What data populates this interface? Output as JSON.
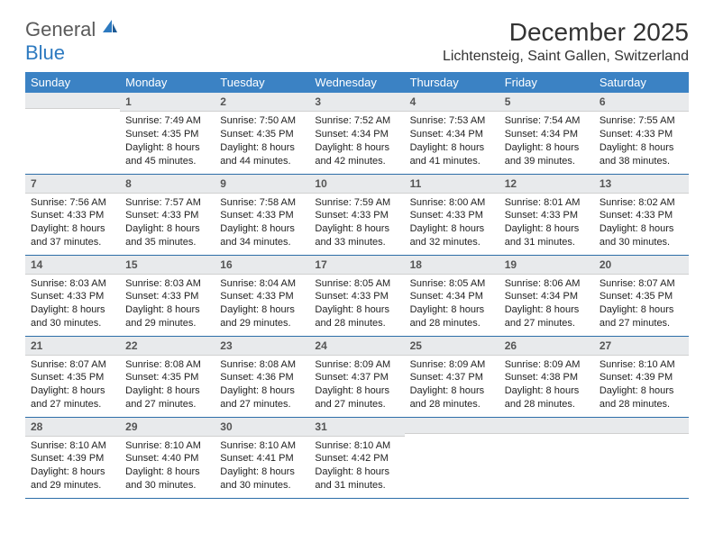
{
  "logo": {
    "general": "General",
    "blue": "Blue"
  },
  "title": "December 2025",
  "location": "Lichtensteig, Saint Gallen, Switzerland",
  "colors": {
    "header_bg": "#3b82c4",
    "header_text": "#ffffff",
    "daynum_bg": "#e8eaec",
    "row_border": "#2d6ea8",
    "text": "#222222"
  },
  "daynames": [
    "Sunday",
    "Monday",
    "Tuesday",
    "Wednesday",
    "Thursday",
    "Friday",
    "Saturday"
  ],
  "weeks": [
    [
      {
        "n": "",
        "sr": "",
        "ss": "",
        "dl": ""
      },
      {
        "n": "1",
        "sr": "7:49 AM",
        "ss": "4:35 PM",
        "dl": "8 hours and 45 minutes."
      },
      {
        "n": "2",
        "sr": "7:50 AM",
        "ss": "4:35 PM",
        "dl": "8 hours and 44 minutes."
      },
      {
        "n": "3",
        "sr": "7:52 AM",
        "ss": "4:34 PM",
        "dl": "8 hours and 42 minutes."
      },
      {
        "n": "4",
        "sr": "7:53 AM",
        "ss": "4:34 PM",
        "dl": "8 hours and 41 minutes."
      },
      {
        "n": "5",
        "sr": "7:54 AM",
        "ss": "4:34 PM",
        "dl": "8 hours and 39 minutes."
      },
      {
        "n": "6",
        "sr": "7:55 AM",
        "ss": "4:33 PM",
        "dl": "8 hours and 38 minutes."
      }
    ],
    [
      {
        "n": "7",
        "sr": "7:56 AM",
        "ss": "4:33 PM",
        "dl": "8 hours and 37 minutes."
      },
      {
        "n": "8",
        "sr": "7:57 AM",
        "ss": "4:33 PM",
        "dl": "8 hours and 35 minutes."
      },
      {
        "n": "9",
        "sr": "7:58 AM",
        "ss": "4:33 PM",
        "dl": "8 hours and 34 minutes."
      },
      {
        "n": "10",
        "sr": "7:59 AM",
        "ss": "4:33 PM",
        "dl": "8 hours and 33 minutes."
      },
      {
        "n": "11",
        "sr": "8:00 AM",
        "ss": "4:33 PM",
        "dl": "8 hours and 32 minutes."
      },
      {
        "n": "12",
        "sr": "8:01 AM",
        "ss": "4:33 PM",
        "dl": "8 hours and 31 minutes."
      },
      {
        "n": "13",
        "sr": "8:02 AM",
        "ss": "4:33 PM",
        "dl": "8 hours and 30 minutes."
      }
    ],
    [
      {
        "n": "14",
        "sr": "8:03 AM",
        "ss": "4:33 PM",
        "dl": "8 hours and 30 minutes."
      },
      {
        "n": "15",
        "sr": "8:03 AM",
        "ss": "4:33 PM",
        "dl": "8 hours and 29 minutes."
      },
      {
        "n": "16",
        "sr": "8:04 AM",
        "ss": "4:33 PM",
        "dl": "8 hours and 29 minutes."
      },
      {
        "n": "17",
        "sr": "8:05 AM",
        "ss": "4:33 PM",
        "dl": "8 hours and 28 minutes."
      },
      {
        "n": "18",
        "sr": "8:05 AM",
        "ss": "4:34 PM",
        "dl": "8 hours and 28 minutes."
      },
      {
        "n": "19",
        "sr": "8:06 AM",
        "ss": "4:34 PM",
        "dl": "8 hours and 27 minutes."
      },
      {
        "n": "20",
        "sr": "8:07 AM",
        "ss": "4:35 PM",
        "dl": "8 hours and 27 minutes."
      }
    ],
    [
      {
        "n": "21",
        "sr": "8:07 AM",
        "ss": "4:35 PM",
        "dl": "8 hours and 27 minutes."
      },
      {
        "n": "22",
        "sr": "8:08 AM",
        "ss": "4:35 PM",
        "dl": "8 hours and 27 minutes."
      },
      {
        "n": "23",
        "sr": "8:08 AM",
        "ss": "4:36 PM",
        "dl": "8 hours and 27 minutes."
      },
      {
        "n": "24",
        "sr": "8:09 AM",
        "ss": "4:37 PM",
        "dl": "8 hours and 27 minutes."
      },
      {
        "n": "25",
        "sr": "8:09 AM",
        "ss": "4:37 PM",
        "dl": "8 hours and 28 minutes."
      },
      {
        "n": "26",
        "sr": "8:09 AM",
        "ss": "4:38 PM",
        "dl": "8 hours and 28 minutes."
      },
      {
        "n": "27",
        "sr": "8:10 AM",
        "ss": "4:39 PM",
        "dl": "8 hours and 28 minutes."
      }
    ],
    [
      {
        "n": "28",
        "sr": "8:10 AM",
        "ss": "4:39 PM",
        "dl": "8 hours and 29 minutes."
      },
      {
        "n": "29",
        "sr": "8:10 AM",
        "ss": "4:40 PM",
        "dl": "8 hours and 30 minutes."
      },
      {
        "n": "30",
        "sr": "8:10 AM",
        "ss": "4:41 PM",
        "dl": "8 hours and 30 minutes."
      },
      {
        "n": "31",
        "sr": "8:10 AM",
        "ss": "4:42 PM",
        "dl": "8 hours and 31 minutes."
      },
      {
        "n": "",
        "sr": "",
        "ss": "",
        "dl": ""
      },
      {
        "n": "",
        "sr": "",
        "ss": "",
        "dl": ""
      },
      {
        "n": "",
        "sr": "",
        "ss": "",
        "dl": ""
      }
    ]
  ],
  "labels": {
    "sunrise": "Sunrise:",
    "sunset": "Sunset:",
    "daylight": "Daylight:"
  }
}
